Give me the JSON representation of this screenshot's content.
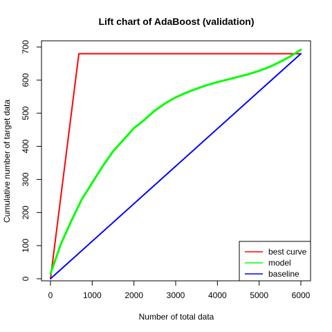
{
  "chart_data": {
    "type": "line",
    "title": "Lift chart of AdaBoost (validation)",
    "xlabel": "Number of total data",
    "ylabel": "Cumulative number of target data",
    "xlim": [
      0,
      6000
    ],
    "ylim": [
      0,
      700
    ],
    "x_ticks": [
      0,
      1000,
      2000,
      3000,
      4000,
      5000,
      6000
    ],
    "y_ticks": [
      0,
      100,
      200,
      300,
      400,
      500,
      600,
      700
    ],
    "grid": false,
    "legend_position": "bottom-right",
    "series": [
      {
        "name": "best curve",
        "color": "#ff0000",
        "x": [
          0,
          680,
          6000
        ],
        "y": [
          0,
          680,
          680
        ]
      },
      {
        "name": "model",
        "color": "#00ff00",
        "x": [
          0,
          250,
          500,
          750,
          1000,
          1250,
          1500,
          1750,
          2000,
          2250,
          2500,
          2750,
          3000,
          3250,
          3500,
          3750,
          4000,
          4250,
          4500,
          4750,
          5000,
          5250,
          5500,
          5750,
          6000
        ],
        "y": [
          15,
          105,
          175,
          240,
          290,
          340,
          385,
          420,
          455,
          480,
          508,
          530,
          548,
          562,
          574,
          585,
          594,
          602,
          610,
          618,
          628,
          640,
          655,
          672,
          692
        ]
      },
      {
        "name": "baseline",
        "color": "#0000ff",
        "x": [
          0,
          6000
        ],
        "y": [
          0,
          680
        ]
      }
    ]
  }
}
